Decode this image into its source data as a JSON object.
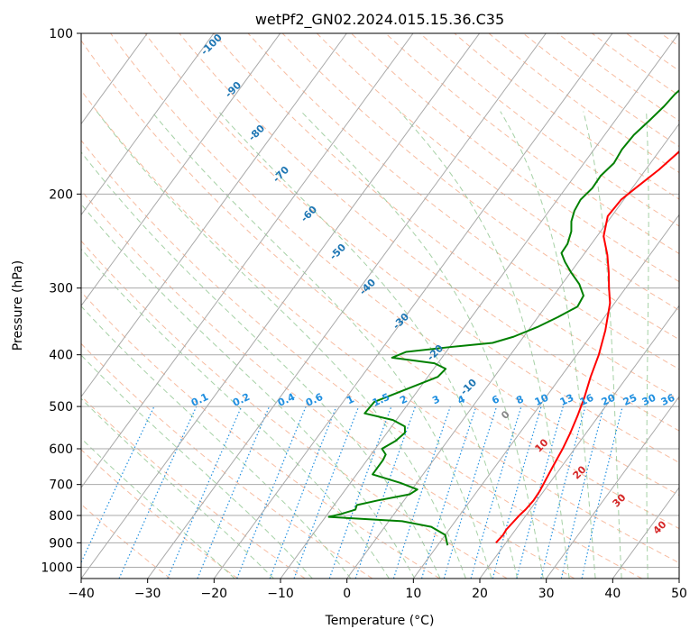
{
  "chart_data": {
    "type": "line",
    "title": "wetPf2_GN02.2024.015.15.36.C35",
    "xlabel": "Temperature (°C)",
    "ylabel": "Pressure (hPa)",
    "xlim": [
      -40,
      50
    ],
    "ylim": [
      1050,
      100
    ],
    "y_scale": "log",
    "x_ticks": [
      -40,
      -30,
      -20,
      -10,
      0,
      10,
      20,
      30,
      40,
      50
    ],
    "y_ticks": [
      100,
      200,
      300,
      400,
      500,
      600,
      700,
      800,
      900,
      1000
    ],
    "grid": true,
    "series": [
      {
        "color": "#ff0000",
        "points": [
          [
            18.5,
            900
          ],
          [
            18.7,
            870
          ],
          [
            18.6,
            850
          ],
          [
            19.0,
            800
          ],
          [
            19.3,
            780
          ],
          [
            19.5,
            750
          ],
          [
            19.4,
            720
          ],
          [
            19.2,
            700
          ],
          [
            18.7,
            650
          ],
          [
            18.2,
            600
          ],
          [
            17.6,
            560
          ],
          [
            16.8,
            520
          ],
          [
            15.8,
            480
          ],
          [
            14.5,
            440
          ],
          [
            13.3,
            400
          ],
          [
            11.6,
            360
          ],
          [
            9.3,
            320
          ],
          [
            7.5,
            300
          ],
          [
            5.7,
            280
          ],
          [
            3.6,
            260
          ],
          [
            1.0,
            240
          ],
          [
            -0.6,
            220
          ],
          [
            -0.4,
            205
          ],
          [
            0.5,
            195
          ],
          [
            2.0,
            180
          ],
          [
            3.6,
            160
          ],
          [
            5.5,
            145
          ],
          [
            7.5,
            130
          ],
          [
            9.0,
            120
          ],
          [
            10.5,
            110
          ],
          [
            12.5,
            100
          ]
        ]
      },
      {
        "color": "#008000",
        "points": [
          [
            11.5,
            910
          ],
          [
            10.0,
            870
          ],
          [
            7.0,
            840
          ],
          [
            2.0,
            820
          ],
          [
            -9.5,
            805
          ],
          [
            -8.0,
            795
          ],
          [
            -6.3,
            780
          ],
          [
            -6.6,
            765
          ],
          [
            -4.0,
            750
          ],
          [
            0.2,
            730
          ],
          [
            0.8,
            715
          ],
          [
            -2.5,
            695
          ],
          [
            -7.6,
            670
          ],
          [
            -7.6,
            630
          ],
          [
            -7.8,
            615
          ],
          [
            -9.0,
            600
          ],
          [
            -7.8,
            580
          ],
          [
            -7.3,
            560
          ],
          [
            -8.0,
            545
          ],
          [
            -10.5,
            530
          ],
          [
            -15.5,
            515
          ],
          [
            -15.3,
            490
          ],
          [
            -12.0,
            465
          ],
          [
            -8.5,
            440
          ],
          [
            -8.2,
            425
          ],
          [
            -10.5,
            415
          ],
          [
            -17.5,
            405
          ],
          [
            -16.0,
            395
          ],
          [
            -10.0,
            387
          ],
          [
            -4.0,
            380
          ],
          [
            -1.5,
            370
          ],
          [
            1.0,
            355
          ],
          [
            3.0,
            340
          ],
          [
            4.8,
            325
          ],
          [
            4.5,
            310
          ],
          [
            2.6,
            295
          ],
          [
            0.0,
            280
          ],
          [
            -2.0,
            268
          ],
          [
            -3.5,
            258
          ],
          [
            -3.6,
            248
          ],
          [
            -4.4,
            235
          ],
          [
            -5.5,
            225
          ],
          [
            -6.2,
            215
          ],
          [
            -6.5,
            205
          ],
          [
            -6.0,
            195
          ],
          [
            -6.1,
            185
          ],
          [
            -5.5,
            175
          ],
          [
            -5.8,
            165
          ],
          [
            -5.6,
            155
          ],
          [
            -4.8,
            145
          ],
          [
            -4.2,
            137
          ],
          [
            -3.9,
            130
          ],
          [
            -2.7,
            120
          ],
          [
            -1.0,
            112
          ],
          [
            0.5,
            106
          ],
          [
            1.5,
            100
          ]
        ]
      }
    ],
    "dry_adiabat_labels": [
      "-100",
      "-90",
      "-80",
      "-70",
      "-60",
      "-50",
      "-40",
      "-30",
      "-20",
      "-10",
      "0",
      "10",
      "20",
      "30",
      "40"
    ],
    "mixing_ratio_labels": [
      "0.1",
      "0.2",
      "0.4",
      "0.6",
      "1",
      "1.5",
      "2",
      "3",
      "4",
      "6",
      "8",
      "10",
      "13",
      "16",
      "20",
      "25",
      "30",
      "36"
    ],
    "colors": {
      "temperature": "#ff0000",
      "dewpoint": "#008000",
      "dry_adiabat": "#f4a582",
      "moist_adiabat": "#90c590",
      "mixing_ratio": "#1f8fe0",
      "isotherm": "#a9a9a9",
      "grid": "#a9a9a9"
    }
  }
}
